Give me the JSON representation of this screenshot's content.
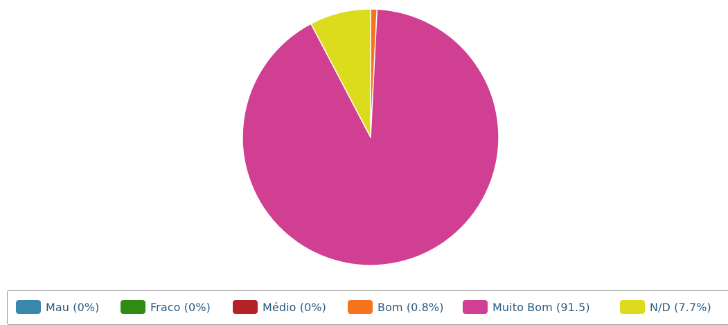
{
  "chart_data": {
    "type": "pie",
    "title": "",
    "slices": [
      {
        "label": "Mau (0%)",
        "value": 0,
        "color": "#3a87ad"
      },
      {
        "label": "Fraco (0%)",
        "value": 0,
        "color": "#2e8b14"
      },
      {
        "label": "Médio (0%)",
        "value": 0,
        "color": "#b22228"
      },
      {
        "label": "Bom (0.8%)",
        "value": 0.8,
        "color": "#f5731c"
      },
      {
        "label": "Muito Bom (91.5)",
        "value": 91.5,
        "color": "#d03f92"
      },
      {
        "label": "N/D (7.7%)",
        "value": 7.7,
        "color": "#dcdc1c"
      }
    ],
    "legend_position": "bottom",
    "start_angle_deg": 0,
    "direction": "clockwise"
  }
}
